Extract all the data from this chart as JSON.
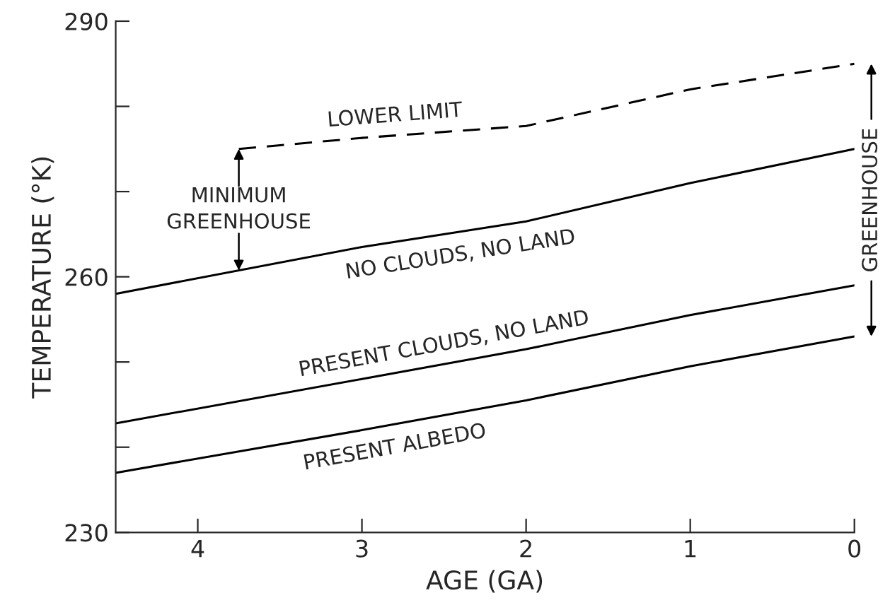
{
  "chart_data": {
    "type": "line",
    "xlabel": "AGE (GA)",
    "ylabel": "TEMPERATURE (°K)",
    "xlim": [
      4.5,
      0
    ],
    "xticks": [
      4,
      3,
      2,
      1,
      0
    ],
    "ylim": [
      230,
      290
    ],
    "yticks": [
      230,
      {
        "value": 240,
        "label": null
      },
      {
        "value": 250,
        "label": null
      },
      260,
      {
        "value": 270,
        "label": null
      },
      {
        "value": 280,
        "label": null
      },
      290
    ],
    "grid": false,
    "legend": false,
    "marker": "none",
    "series": [
      {
        "name": "LOWER LIMIT",
        "color": "#000000",
        "line_style": "dashed",
        "x": [
          3.75,
          3,
          2,
          1,
          0
        ],
        "values": [
          275,
          276.3,
          277.7,
          282,
          285
        ]
      },
      {
        "name": "NO CLOUDS, NO LAND",
        "color": "#000000",
        "line_style": "solid",
        "x": [
          4.5,
          3,
          2,
          1,
          0
        ],
        "values": [
          258,
          263.5,
          266.5,
          271,
          275
        ]
      },
      {
        "name": "PRESENT CLOUDS, NO LAND",
        "color": "#000000",
        "line_style": "solid",
        "x": [
          4.5,
          3,
          2,
          1,
          0
        ],
        "values": [
          242.8,
          248,
          251.5,
          255.5,
          259
        ]
      },
      {
        "name": "PRESENT ALBEDO",
        "color": "#000000",
        "line_style": "solid",
        "x": [
          4.5,
          3,
          2,
          1,
          0
        ],
        "values": [
          237,
          242,
          245.5,
          249.5,
          253
        ]
      }
    ],
    "annotations": [
      "MINIMUM\nGREENHOUSE",
      "GREENHOUSE"
    ]
  }
}
